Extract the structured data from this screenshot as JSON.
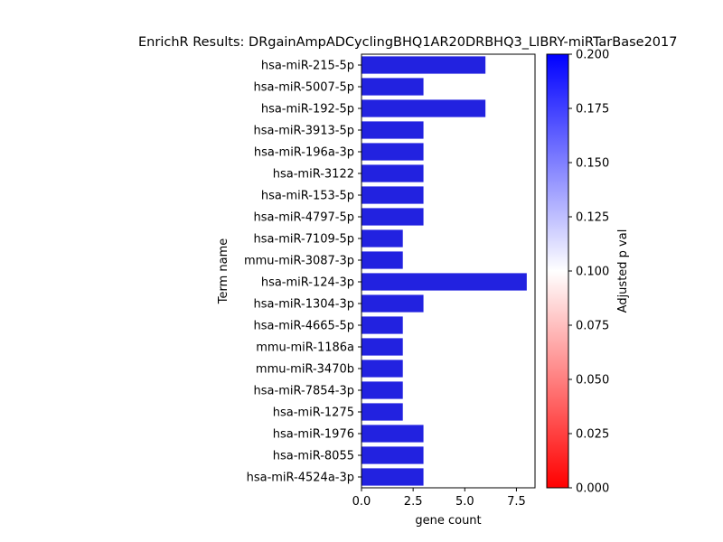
{
  "chart_data": {
    "type": "bar",
    "orientation": "horizontal",
    "title": "EnrichR Results: DRgainAmpADCyclingBHQ1AR20DRBHQ3_LIBRY-miRTarBase2017",
    "xlabel": "gene count",
    "ylabel": "Term name",
    "xlim": [
      0,
      8.4
    ],
    "xticks": [
      "0.0",
      "2.5",
      "5.0",
      "7.5"
    ],
    "xtick_values": [
      0,
      2.5,
      5.0,
      7.5
    ],
    "grid": false,
    "categories": [
      "hsa-miR-215-5p",
      "hsa-miR-5007-5p",
      "hsa-miR-192-5p",
      "hsa-miR-3913-5p",
      "hsa-miR-196a-3p",
      "hsa-miR-3122",
      "hsa-miR-153-5p",
      "hsa-miR-4797-5p",
      "hsa-miR-7109-5p",
      "mmu-miR-3087-3p",
      "hsa-miR-124-3p",
      "hsa-miR-1304-3p",
      "hsa-miR-4665-5p",
      "mmu-miR-1186a",
      "mmu-miR-3470b",
      "hsa-miR-7854-3p",
      "hsa-miR-1275",
      "hsa-miR-1976",
      "hsa-miR-8055",
      "hsa-miR-4524a-3p"
    ],
    "values": [
      6,
      3,
      6,
      3,
      3,
      3,
      3,
      3,
      2,
      2,
      8,
      3,
      2,
      2,
      2,
      2,
      2,
      3,
      3,
      3
    ],
    "bar_color": "#2222e0",
    "colorbar": {
      "label": "Adjusted p val",
      "range": [
        0.0,
        0.2
      ],
      "ticks": [
        "0.000",
        "0.025",
        "0.050",
        "0.075",
        "0.100",
        "0.125",
        "0.150",
        "0.175",
        "0.200"
      ],
      "tick_values": [
        0,
        0.025,
        0.05,
        0.075,
        0.1,
        0.125,
        0.15,
        0.175,
        0.2
      ],
      "colors": [
        "#ff0000",
        "#ffffff",
        "#0000ff"
      ]
    }
  }
}
